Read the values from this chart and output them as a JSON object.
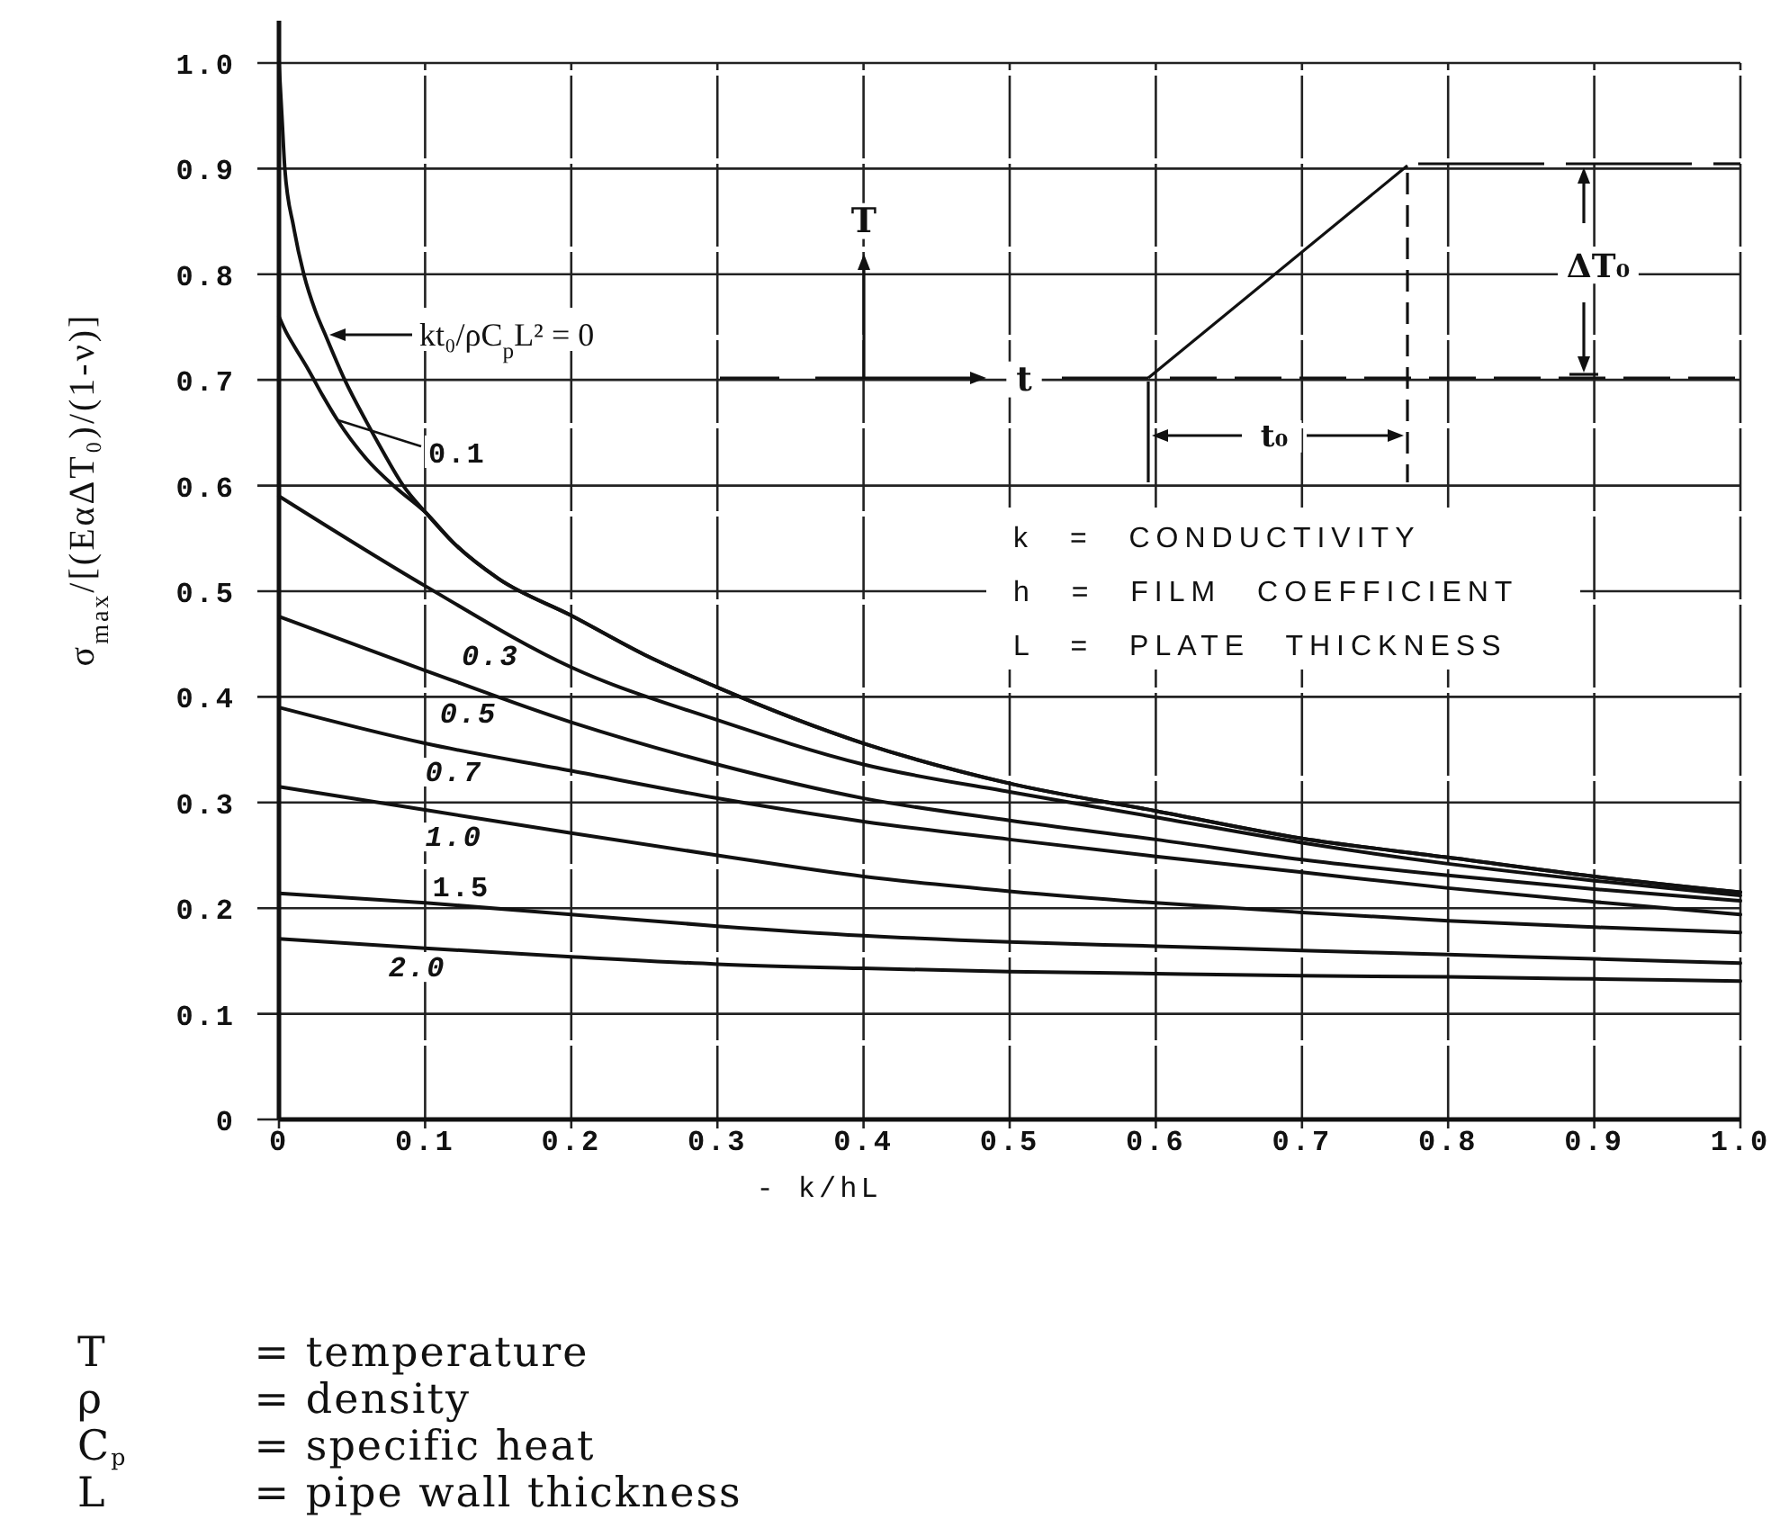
{
  "chart_data": {
    "type": "line",
    "xlabel": "- k/hL",
    "ylabel": "σ$_{max}$/[(EαΔT₀)/(1-ν)]",
    "xlim": [
      0,
      1
    ],
    "ylim": [
      0,
      1.04
    ],
    "xticks": [
      0,
      0.1,
      0.2,
      0.3,
      0.4,
      0.5,
      0.6,
      0.7,
      0.8,
      0.9,
      {
        "value": 1,
        "label": "1.0"
      }
    ],
    "yticks": [
      0,
      0.1,
      0.2,
      0.3,
      0.4,
      0.5,
      0.6,
      0.7,
      0.8,
      0.9,
      {
        "value": 1,
        "label": "1.0"
      }
    ],
    "grid": true,
    "x": [
      0,
      0.1,
      0.2,
      0.3,
      0.4,
      0.5,
      0.6,
      0.7,
      0.8,
      0.9,
      1
    ],
    "series": [
      {
        "name": "kt₀/ρC$_{p}$L² = 0",
        "color": "#111111",
        "x": [
          0,
          0.002,
          0.004,
          0.01,
          0.017,
          0.025,
          0.031,
          0.045,
          0.06,
          0.07,
          0.085,
          0.1,
          0.12,
          0.15,
          0.2,
          0.25,
          0.3,
          0.4,
          0.5,
          0.6,
          0.7,
          0.8,
          0.9,
          1
        ],
        "values": [
          1,
          0.95,
          0.9,
          0.845,
          0.8,
          0.765,
          0.745,
          0.7,
          0.66,
          0.635,
          0.6,
          0.575,
          0.545,
          0.512,
          0.477,
          0.44,
          0.409,
          0.356,
          0.318,
          0.292,
          0.266,
          0.248,
          0.23,
          0.215
        ]
      },
      {
        "name": "0.1",
        "color": "#111111",
        "x": [
          0,
          0.005,
          0.01,
          0.02,
          0.03,
          0.04,
          0.06,
          0.08,
          0.1,
          0.12,
          0.15,
          0.2,
          0.25,
          0.3,
          0.4,
          0.5,
          0.6,
          0.7,
          0.8,
          0.9,
          1
        ],
        "values": [
          0.76,
          0.745,
          0.733,
          0.71,
          0.685,
          0.662,
          0.625,
          0.598,
          0.575,
          0.545,
          0.512,
          0.477,
          0.44,
          0.409,
          0.356,
          0.318,
          0.292,
          0.266,
          0.248,
          0.23,
          0.215
        ]
      },
      {
        "name": "0.3",
        "color": "#111111",
        "values": [
          0.59,
          0.505,
          0.428,
          0.378,
          0.336,
          0.31,
          0.286,
          0.262,
          0.242,
          0.226,
          0.212
        ]
      },
      {
        "name": "0.5",
        "color": "#111111",
        "values": [
          0.476,
          0.425,
          0.376,
          0.336,
          0.304,
          0.283,
          0.265,
          0.246,
          0.231,
          0.218,
          0.207
        ]
      },
      {
        "name": "0.7",
        "color": "#111111",
        "values": [
          0.39,
          0.356,
          0.33,
          0.304,
          0.282,
          0.265,
          0.249,
          0.234,
          0.219,
          0.206,
          0.194
        ]
      },
      {
        "name": "1.0",
        "color": "#111111",
        "values": [
          0.315,
          0.293,
          0.271,
          0.25,
          0.23,
          0.216,
          0.205,
          0.196,
          0.188,
          0.182,
          0.177
        ]
      },
      {
        "name": "1.5",
        "color": "#111111",
        "values": [
          0.214,
          0.205,
          0.194,
          0.183,
          0.174,
          0.168,
          0.164,
          0.16,
          0.156,
          0.152,
          0.148
        ]
      },
      {
        "name": "2.0",
        "color": "#111111",
        "values": [
          0.171,
          0.162,
          0.154,
          0.147,
          0.143,
          0.14,
          0.138,
          0.136,
          0.135,
          0.133,
          0.131
        ]
      }
    ],
    "annotations": [
      "T",
      "t",
      "t₀",
      "ΔT₀",
      "k = CONDUCTIVITY",
      "h = FILM COEFFICIENT",
      "L = PLATE THICKNESS",
      "T = temperature",
      "ρ = density",
      "C$_{p}$ = specific heat",
      "L = pipe wall thickness"
    ]
  }
}
